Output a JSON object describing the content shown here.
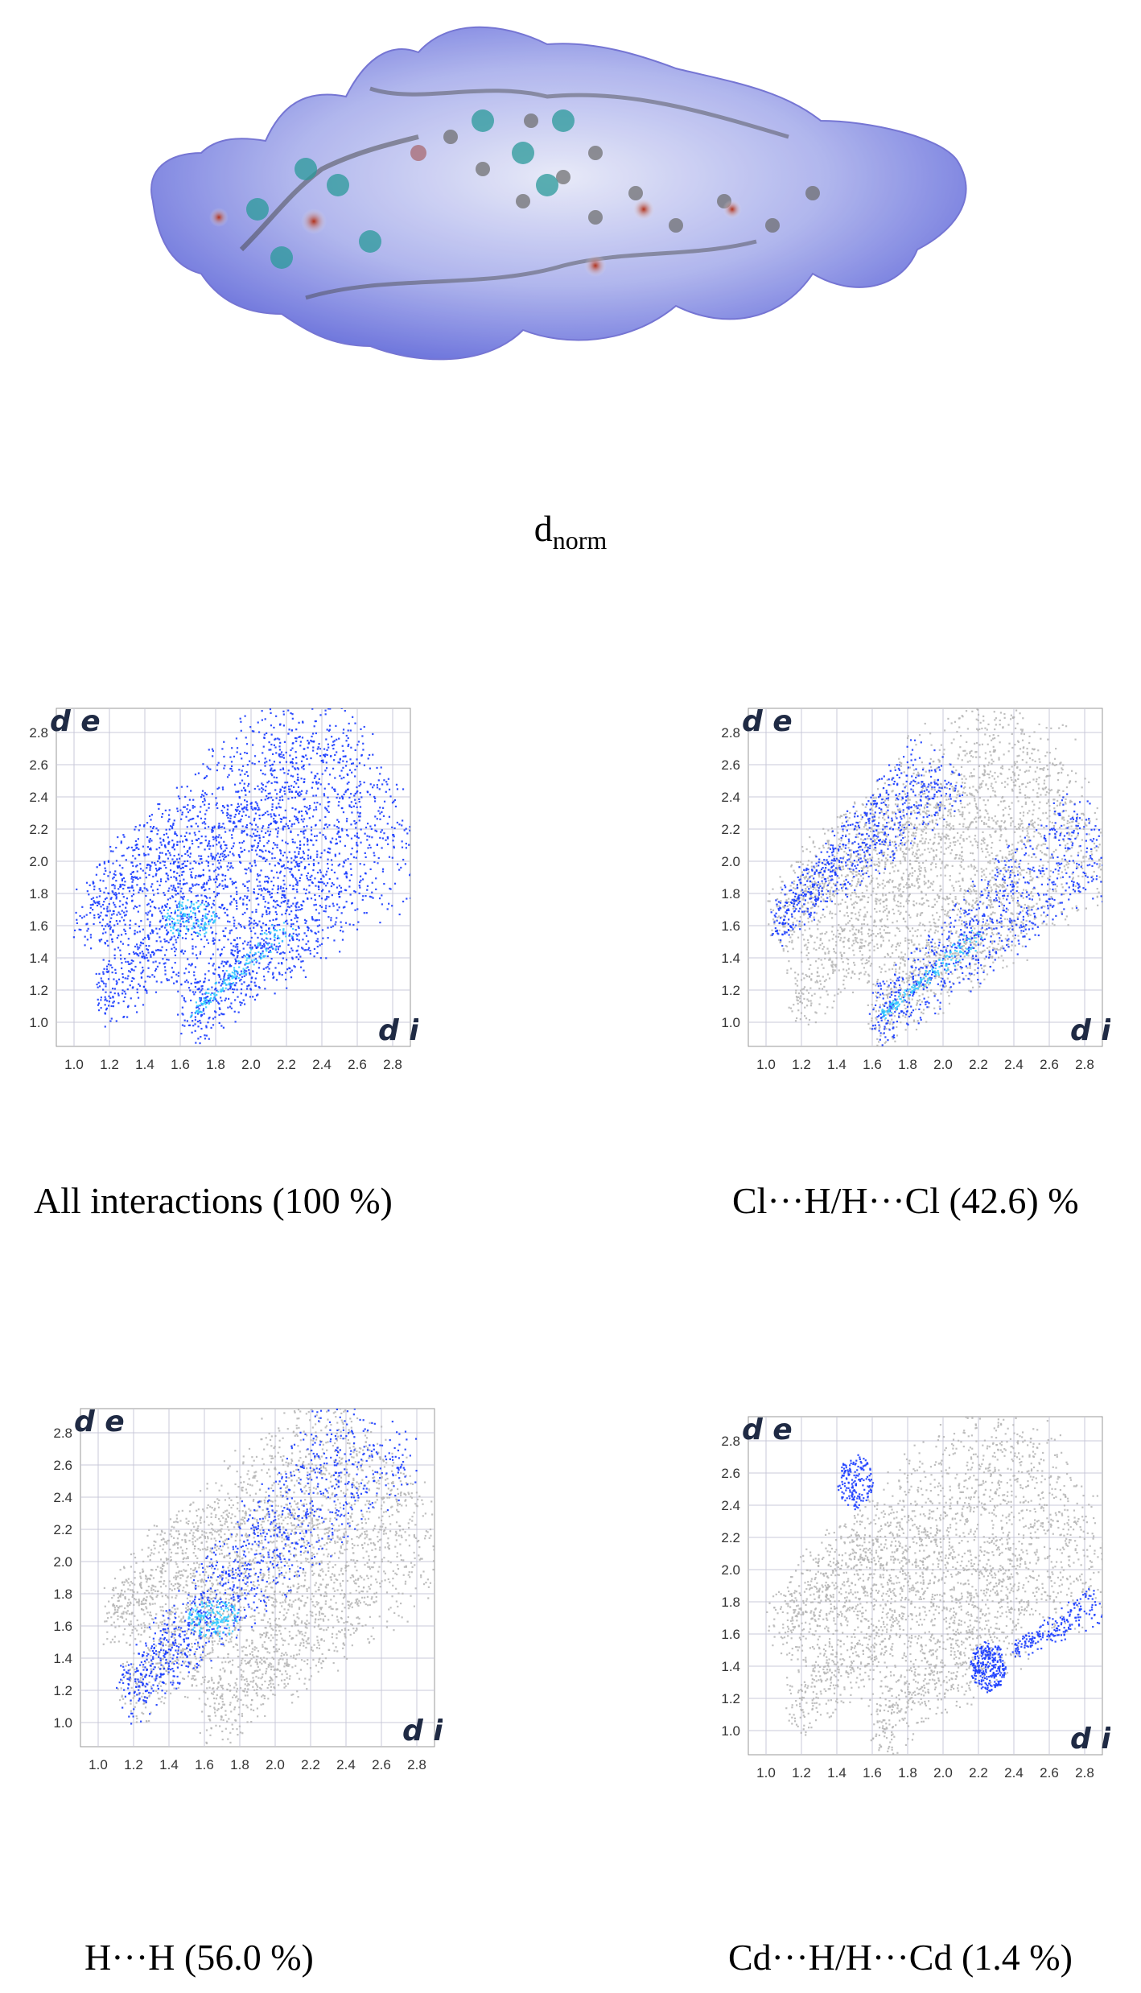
{
  "surface": {
    "label_main": "d",
    "label_sub": "norm"
  },
  "panels": [
    {
      "caption": "All interactions (100 %)",
      "corner_y": "d e",
      "corner_x": "d i"
    },
    {
      "caption": "Cl···H/H···Cl (42.6) %",
      "corner_y": "d e",
      "corner_x": "d i"
    },
    {
      "caption": "H···H (56.0 %)",
      "corner_y": "d e",
      "corner_x": "d i"
    },
    {
      "caption": "Cd···H/H···Cd (1.4 %)",
      "corner_y": "d e",
      "corner_x": "d i"
    }
  ],
  "axis": {
    "x_ticks": [
      "1.0",
      "1.2",
      "1.4",
      "1.6",
      "1.8",
      "2.0",
      "2.2",
      "2.4",
      "2.6",
      "2.8"
    ],
    "y_ticks": [
      "1.0",
      "1.2",
      "1.4",
      "1.6",
      "1.8",
      "2.0",
      "2.2",
      "2.4",
      "2.6",
      "2.8"
    ]
  },
  "colors": {
    "highlight": "#1a3cff",
    "highlight_core": "#33ccff",
    "background_points": "#b4b4b4",
    "grid": "#c8c8d8",
    "surface": "#7c86e6"
  }
}
